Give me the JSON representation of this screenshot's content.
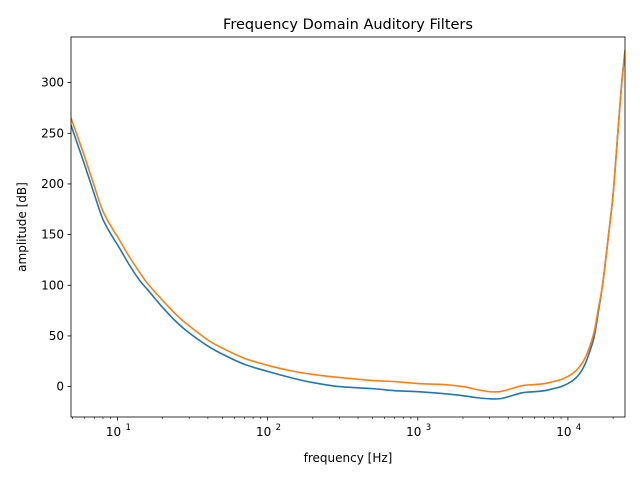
{
  "chart_data": {
    "type": "line",
    "title": "Frequency Domain Auditory Filters",
    "xlabel": "frequency [Hz]",
    "ylabel": "amplitude [dB]",
    "xscale": "log",
    "xlim": [
      4.9,
      24000
    ],
    "ylim": [
      -30,
      345
    ],
    "grid": false,
    "xticks": [
      {
        "value": 10,
        "base": "10",
        "exp": "1"
      },
      {
        "value": 100,
        "base": "10",
        "exp": "2"
      },
      {
        "value": 1000,
        "base": "10",
        "exp": "3"
      },
      {
        "value": 10000,
        "base": "10",
        "exp": "4"
      }
    ],
    "yticks": [
      0,
      50,
      100,
      150,
      200,
      250,
      300
    ],
    "series": [
      {
        "color": "#1f77b4",
        "x": [
          4.9,
          6,
          7,
          8,
          9.5,
          10,
          12,
          14,
          16,
          20,
          25,
          30,
          40,
          50,
          70,
          100,
          150,
          200,
          300,
          500,
          700,
          1000,
          1500,
          2000,
          2500,
          3000,
          3500,
          4000,
          5000,
          6000,
          7000,
          8000,
          9000,
          10000,
          11000,
          12000,
          13000,
          14000,
          15000,
          16000,
          17000,
          18000,
          19000,
          20000,
          21000,
          22000,
          23000,
          24000
        ],
        "y": [
          258,
          220,
          190,
          165,
          145,
          140,
          120,
          105,
          95,
          78,
          63,
          53,
          40,
          32,
          22,
          15,
          8,
          4,
          0,
          -2,
          -4,
          -5,
          -7,
          -9,
          -11,
          -12,
          -12,
          -10,
          -6,
          -5,
          -4,
          -2,
          0,
          3,
          7,
          13,
          22,
          35,
          50,
          75,
          100,
          130,
          160,
          190,
          230,
          270,
          305,
          330
        ]
      },
      {
        "color": "#ff7f0e",
        "x": [
          4.9,
          6,
          7,
          8,
          9.5,
          10,
          12,
          14,
          16,
          20,
          25,
          30,
          40,
          50,
          70,
          100,
          150,
          200,
          300,
          500,
          700,
          1000,
          1500,
          2000,
          2500,
          3000,
          3500,
          4000,
          5000,
          6000,
          7000,
          8000,
          9000,
          10000,
          11000,
          12000,
          13000,
          14000,
          15000,
          16000,
          17000,
          18000,
          19000,
          20000,
          21000,
          22000,
          23000,
          24000
        ],
        "y": [
          265,
          228,
          198,
          173,
          153,
          148,
          128,
          113,
          101,
          85,
          70,
          60,
          46,
          38,
          28,
          21,
          15,
          12,
          9,
          6,
          5,
          3,
          2,
          0,
          -3,
          -5,
          -5,
          -3,
          1,
          2,
          3,
          5,
          7,
          10,
          14,
          20,
          28,
          40,
          55,
          78,
          100,
          130,
          160,
          190,
          230,
          270,
          305,
          332
        ]
      }
    ]
  }
}
